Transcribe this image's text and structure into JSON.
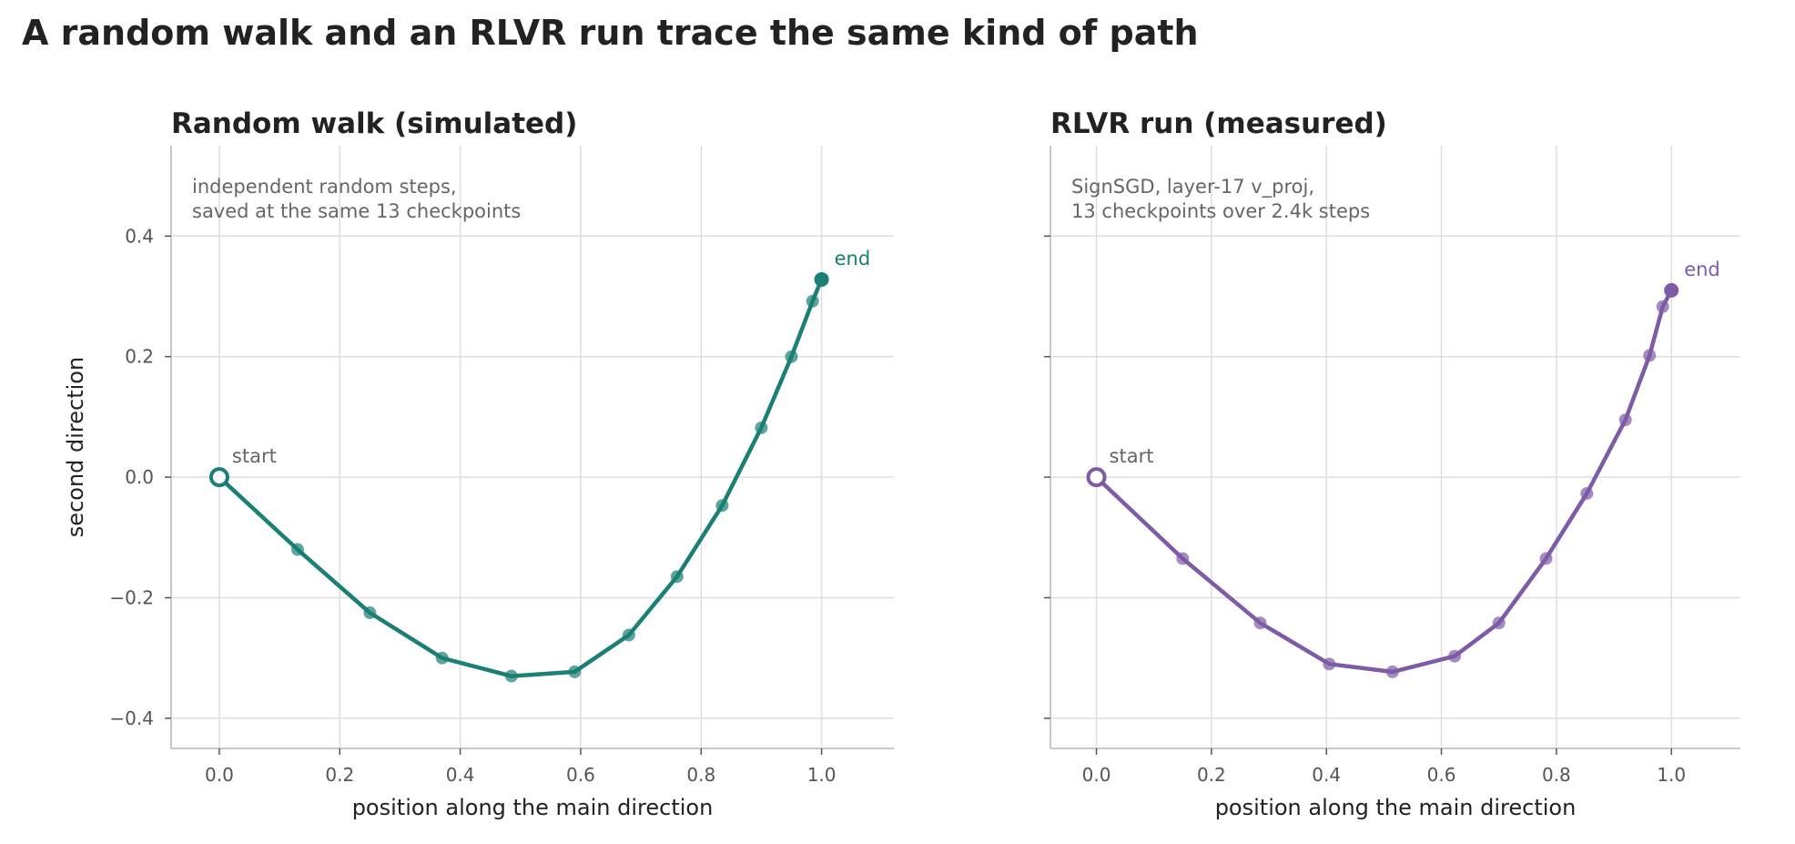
{
  "figure": {
    "title": "A random walk and an RLVR run trace the same kind of path"
  },
  "chart_data": [
    {
      "type": "line",
      "title": "Random walk (simulated)",
      "xlabel": "position along the main direction",
      "ylabel": "second direction",
      "xlim": [
        -0.08,
        1.12
      ],
      "ylim": [
        -0.45,
        0.55
      ],
      "xticks": [
        0.0,
        0.2,
        0.4,
        0.6,
        0.8,
        1.0
      ],
      "xtick_labels": [
        "0.0",
        "0.2",
        "0.4",
        "0.6",
        "0.8",
        "1.0"
      ],
      "yticks": [
        -0.4,
        -0.2,
        0.0,
        0.2,
        0.4
      ],
      "ytick_labels": [
        "−0.4",
        "−0.2",
        "0.0",
        "0.2",
        "0.4"
      ],
      "grid": true,
      "annotation": [
        "independent random steps,",
        "saved at the same 13 checkpoints"
      ],
      "color": "#1a7f74",
      "start_label": "start",
      "end_label": "end",
      "x": [
        0.0,
        0.13,
        0.25,
        0.37,
        0.485,
        0.59,
        0.68,
        0.76,
        0.835,
        0.9,
        0.95,
        0.985,
        1.0
      ],
      "y": [
        0.0,
        -0.12,
        -0.225,
        -0.3,
        -0.33,
        -0.323,
        -0.262,
        -0.165,
        -0.047,
        0.082,
        0.2,
        0.292,
        0.328
      ]
    },
    {
      "type": "line",
      "title": "RLVR run (measured)",
      "xlabel": "position along the main direction",
      "ylabel": "",
      "xlim": [
        -0.08,
        1.12
      ],
      "ylim": [
        -0.45,
        0.55
      ],
      "xticks": [
        0.0,
        0.2,
        0.4,
        0.6,
        0.8,
        1.0
      ],
      "xtick_labels": [
        "0.0",
        "0.2",
        "0.4",
        "0.6",
        "0.8",
        "1.0"
      ],
      "yticks": [
        -0.4,
        -0.2,
        0.0,
        0.2,
        0.4
      ],
      "ytick_labels": [],
      "grid": true,
      "annotation": [
        "SignSGD, layer-17 v_proj,",
        "13 checkpoints over 2.4k steps"
      ],
      "color": "#7d5ba6",
      "start_label": "start",
      "end_label": "end",
      "x": [
        0.0,
        0.15,
        0.285,
        0.405,
        0.515,
        0.623,
        0.7,
        0.782,
        0.853,
        0.92,
        0.962,
        0.985,
        1.0
      ],
      "y": [
        0.0,
        -0.135,
        -0.242,
        -0.31,
        -0.323,
        -0.297,
        -0.242,
        -0.135,
        -0.027,
        0.095,
        0.202,
        0.283,
        0.31
      ]
    }
  ]
}
